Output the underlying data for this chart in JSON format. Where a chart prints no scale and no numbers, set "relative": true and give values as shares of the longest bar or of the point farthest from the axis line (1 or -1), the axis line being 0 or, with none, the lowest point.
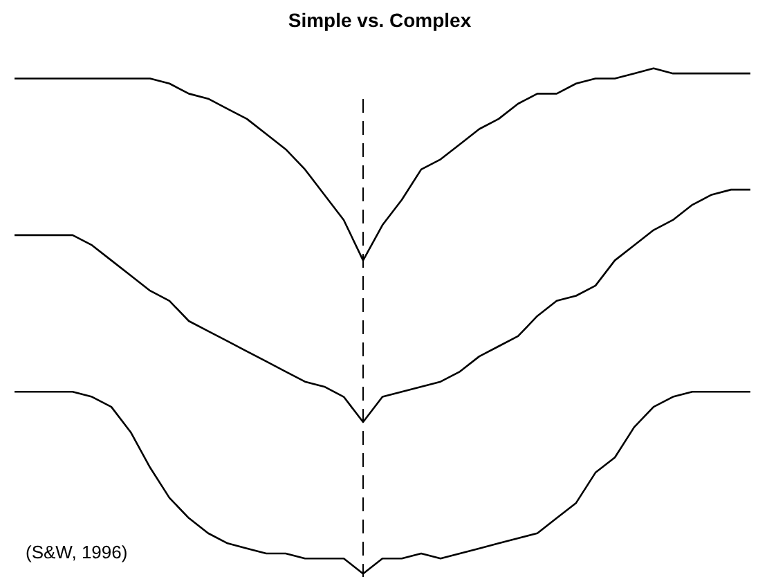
{
  "chart_data": {
    "type": "line",
    "title": "Simple vs. Complex",
    "relative": true,
    "categories": [
      null,
      null,
      null,
      null,
      null,
      null,
      null,
      null,
      null,
      null,
      null,
      null,
      null,
      null,
      null,
      null,
      null,
      null,
      null,
      null,
      null,
      null,
      null,
      null,
      null,
      null,
      null,
      null,
      null,
      null,
      null,
      null,
      null,
      null,
      null,
      null,
      null,
      null,
      null
    ],
    "series": [
      {
        "color": "#000000",
        "values": [
          0.98,
          0.98,
          0.98,
          0.98,
          0.98,
          0.98,
          0.98,
          0.98,
          0.97,
          0.95,
          0.94,
          0.92,
          0.9,
          0.87,
          0.84,
          0.8,
          0.75,
          0.7,
          0.62,
          0.69,
          0.74,
          0.8,
          0.82,
          0.85,
          0.88,
          0.9,
          0.93,
          0.95,
          0.95,
          0.97,
          0.98,
          0.98,
          0.99,
          1.0,
          0.99,
          0.99,
          0.99,
          0.99,
          0.99
        ]
      },
      {
        "color": "#000000",
        "values": [
          0.67,
          0.67,
          0.67,
          0.67,
          0.65,
          0.62,
          0.59,
          0.56,
          0.54,
          0.5,
          0.48,
          0.46,
          0.44,
          0.42,
          0.4,
          0.38,
          0.37,
          0.35,
          0.3,
          0.35,
          0.36,
          0.37,
          0.38,
          0.4,
          0.43,
          0.45,
          0.47,
          0.51,
          0.54,
          0.55,
          0.57,
          0.62,
          0.65,
          0.68,
          0.7,
          0.73,
          0.75,
          0.76,
          0.76
        ]
      },
      {
        "color": "#000000",
        "values": [
          0.36,
          0.36,
          0.36,
          0.36,
          0.35,
          0.33,
          0.28,
          0.21,
          0.15,
          0.11,
          0.08,
          0.06,
          0.05,
          0.04,
          0.04,
          0.03,
          0.03,
          0.03,
          0,
          0.03,
          0.03,
          0.04,
          0.03,
          0.04,
          0.05,
          0.06,
          0.07,
          0.08,
          0.11,
          0.14,
          0.2,
          0.23,
          0.29,
          0.33,
          0.35,
          0.36,
          0.36,
          0.36,
          0.36
        ]
      }
    ],
    "annotations": [
      "(S&W, 1996)"
    ]
  }
}
